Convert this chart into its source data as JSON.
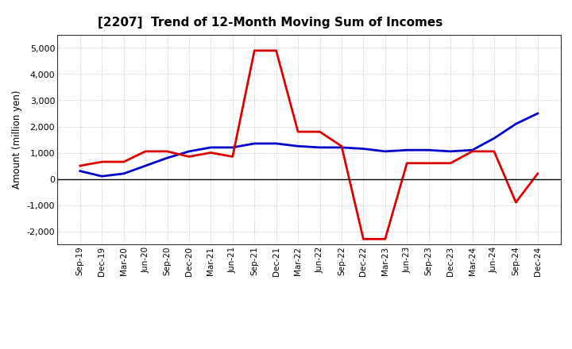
{
  "title": "[2207]  Trend of 12-Month Moving Sum of Incomes",
  "ylabel": "Amount (million yen)",
  "x_labels": [
    "Sep-19",
    "Dec-19",
    "Mar-20",
    "Jun-20",
    "Sep-20",
    "Dec-20",
    "Mar-21",
    "Jun-21",
    "Sep-21",
    "Dec-21",
    "Mar-22",
    "Jun-22",
    "Sep-22",
    "Dec-22",
    "Mar-23",
    "Jun-23",
    "Sep-23",
    "Dec-23",
    "Mar-24",
    "Jun-24",
    "Sep-24",
    "Dec-24"
  ],
  "ordinary_income": [
    300,
    100,
    200,
    500,
    800,
    1050,
    1200,
    1200,
    1350,
    1350,
    1250,
    1200,
    1200,
    1150,
    1050,
    1100,
    1100,
    1050,
    1100,
    1550,
    2100,
    2500
  ],
  "net_income": [
    500,
    650,
    650,
    1050,
    1050,
    850,
    1000,
    850,
    4900,
    4900,
    1800,
    1800,
    1250,
    -2300,
    -2300,
    600,
    600,
    600,
    1050,
    1050,
    -900,
    200
  ],
  "ordinary_income_color": "#0000cc",
  "net_income_color": "#dd0000",
  "ylim": [
    -2500,
    5500
  ],
  "yticks": [
    -2000,
    -1000,
    0,
    1000,
    2000,
    3000,
    4000,
    5000
  ],
  "background_color": "#ffffff",
  "grid_color": "#888888"
}
